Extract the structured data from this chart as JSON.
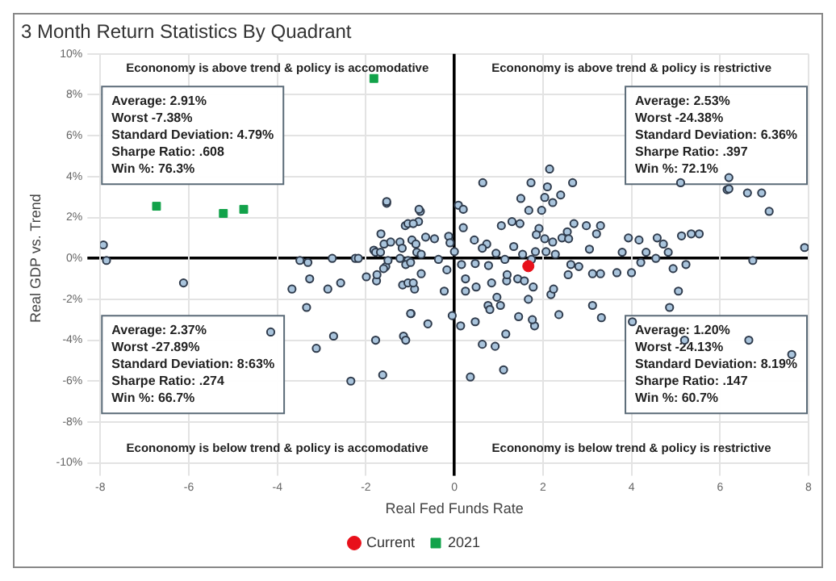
{
  "chart_data": {
    "type": "scatter",
    "title": "3 Month Return Statistics By Quadrant",
    "xlabel": "Real Fed Funds Rate",
    "ylabel": "Real GDP vs. Trend",
    "xlim": [
      -8,
      8
    ],
    "xticks": [
      -8,
      -6,
      -4,
      -2,
      0,
      2,
      4,
      6,
      8
    ],
    "ylim": [
      -10,
      10
    ],
    "yticks": [
      {
        "value": -10,
        "label": "-10%"
      },
      {
        "value": -8,
        "label": "-8%"
      },
      {
        "value": -6,
        "label": "-6%"
      },
      {
        "value": -4,
        "label": "-4%"
      },
      {
        "value": -2,
        "label": "-2%"
      },
      {
        "value": 0,
        "label": "0%"
      },
      {
        "value": 2,
        "label": "2%"
      },
      {
        "value": 4,
        "label": "4%"
      },
      {
        "value": 6,
        "label": "6%"
      },
      {
        "value": 8,
        "label": "8%"
      },
      {
        "value": 10,
        "label": "10%"
      }
    ],
    "grid": true,
    "legend": "bottom",
    "annotations": [
      "Econonomy is above trend & policy is accomodative",
      "Econonomy is above trend & policy is restrictive",
      "Econonomy is below trend & policy is accomodative",
      "Econonomy is below trend & policy is restrictive",
      "Average: 2.91%\nWorst -7.38%\nStandard Deviation: 4.79%\nSharpe Ratio: .608\nWin %: 76.3%",
      "Average: 2.53%\nWorst -24.38%\nStandard Deviation: 6.36%\nSharpe Ratio: .397\nWin %: 72.1%",
      "Average: 2.37%\nWorst -27.89%\nStandard Deviation: 8:63%\nSharpe Ratio: .274\nWin %: 66.7%",
      "Average: 1.20%\nWorst -24.13%\nStandard Deviation: 8.19%\nSharpe Ratio: .147\nWin %: 60.7%"
    ],
    "series": [
      {
        "color": "#a9c4dc",
        "marker": "circle",
        "x": [
          -7.93,
          -7.86,
          -6.12,
          -4.15,
          -3.49,
          -3.31,
          -3.67,
          -3.27,
          -3.34,
          -2.73,
          -3.12,
          -2.76,
          -2.86,
          -2.57,
          -2.34,
          -2.24,
          -2.17,
          -1.99,
          -1.78,
          -1.62,
          -1.76,
          -1.75,
          -1.66,
          -1.53,
          -1.82,
          -1.78,
          -1.67,
          -1.59,
          -1.44,
          -1.55,
          -1.6,
          -1.5,
          -1.23,
          -1.18,
          -1.11,
          -1.05,
          -0.81,
          -0.77,
          -1.17,
          -1.05,
          -0.9,
          -0.98,
          -1.15,
          -1.1,
          -1.23,
          -1.05,
          -1.1,
          -0.96,
          -0.85,
          6.16,
          6.94,
          7.11,
          7.91,
          6.74,
          5.23,
          4.94,
          5.06,
          4.86,
          4.02,
          5.2,
          6.65,
          7.62,
          3.32,
          3.12,
          2.36,
          1.81,
          1.76,
          1.45,
          1.16,
          1.11,
          0.92,
          0.63,
          0.36,
          0.47,
          0.14,
          -0.05,
          -0.6,
          -0.99,
          0.25,
          0.49,
          0.25,
          -0.23,
          0.84,
          0.96,
          0.76,
          0.8,
          1.04,
          1.67,
          1.18,
          1.43,
          1.19,
          1.58,
          1.78,
          2.18,
          2.24,
          2.57,
          2.81,
          3.12,
          3.3,
          3.67,
          4.0,
          4.21,
          4.55,
          3.79,
          4.33,
          3.93,
          4.17,
          4.58,
          4.72,
          4.83,
          5.13,
          5.35,
          5.53,
          3.3,
          3.21,
          2.98,
          2.7,
          2.55,
          2.43,
          2.58,
          2.22,
          2.04,
          2.07,
          2.28,
          1.83,
          1.74,
          1.54,
          1.34,
          1.14,
          0.77,
          0.47,
          0.16,
          1.91,
          1.85,
          1.97,
          2.04,
          2.22,
          2.4,
          1.5,
          1.68,
          1.3,
          1.48,
          1.06,
          0.73,
          0.94,
          0.63,
          0.45,
          0.2,
          0.09,
          0.2,
          -0.13,
          -0.1,
          0.0,
          -0.45,
          -0.65,
          -0.87,
          -0.8,
          -0.93,
          -0.75,
          -0.99,
          -0.75,
          -0.93,
          -0.17,
          -0.36,
          2.63,
          3.05,
          0.64,
          1.73,
          2.15,
          2.67,
          2.1,
          5.11,
          6.2,
          6.62,
          6.2,
          -1.53
        ],
        "values": [
          0.66,
          -0.1,
          -1.2,
          -3.6,
          -0.1,
          -0.2,
          -1.5,
          -1.0,
          -2.4,
          -3.8,
          -4.4,
          0,
          -1.5,
          -1.2,
          -6.0,
          0,
          0,
          -0.9,
          -4.0,
          -5.7,
          -1.1,
          -0.8,
          1.2,
          2.7,
          0.4,
          0.3,
          0.3,
          0.7,
          0.8,
          -0.4,
          -0.5,
          -0.1,
          0.8,
          0.5,
          1.6,
          1.7,
          1.8,
          2.3,
          -1.3,
          -1.2,
          -1.5,
          -2.7,
          -3.8,
          -4.0,
          0.0,
          -0.1,
          -0.3,
          0.9,
          0.3,
          3.36,
          3.2,
          2.3,
          0.53,
          -0.1,
          -0.3,
          -0.5,
          -1.6,
          -2.4,
          -3.1,
          -4.0,
          -4.0,
          -4.7,
          -2.9,
          -2.3,
          -2.75,
          -3.3,
          -3.0,
          -2.85,
          -3.7,
          -5.45,
          -4.3,
          -4.2,
          -5.8,
          -3.1,
          -3.3,
          -2.8,
          -3.2,
          -2.7,
          -1.6,
          -1.4,
          -1.0,
          -1.6,
          -1.2,
          -1.9,
          -2.3,
          -2.5,
          -2.3,
          -2.0,
          -1.1,
          -1.0,
          -0.8,
          -1.1,
          -1.4,
          -1.77,
          -1.5,
          -0.8,
          -0.4,
          -0.75,
          -0.75,
          -0.7,
          -0.7,
          -0.2,
          0.0,
          0.3,
          0.3,
          1.0,
          0.9,
          1.0,
          0.7,
          0.3,
          1.1,
          1.2,
          1.2,
          1.6,
          1.2,
          1.6,
          1.7,
          1.3,
          1.0,
          0.96,
          0.8,
          0.96,
          0.33,
          0.2,
          0.33,
          -0.05,
          0.2,
          0.58,
          -0.05,
          -0.35,
          -0.25,
          -0.3,
          1.46,
          1.16,
          2.35,
          2.98,
          2.73,
          3.1,
          2.93,
          2.35,
          1.8,
          1.7,
          1.6,
          0.7,
          0.25,
          0.5,
          0.9,
          1.5,
          2.6,
          2.4,
          1.08,
          0.76,
          0.33,
          0.96,
          1.04,
          0.7,
          2.4,
          1.7,
          0.2,
          -0.2,
          -0.75,
          -1.2,
          -0.56,
          -0.05,
          -0.3,
          0.45,
          3.7,
          3.7,
          4.37,
          3.7,
          3.5,
          3.7,
          3.95,
          3.2,
          3.4,
          2.78
        ]
      },
      {
        "name": "Current",
        "color": "#e8101a",
        "marker": "circle",
        "x": [
          1.67
        ],
        "values": [
          -0.38
        ]
      },
      {
        "name": "2021",
        "color": "#12a24a",
        "marker": "square",
        "x": [
          -6.73,
          -5.22,
          -4.76,
          -1.82
        ],
        "values": [
          2.55,
          2.2,
          2.4,
          8.8
        ]
      }
    ]
  }
}
